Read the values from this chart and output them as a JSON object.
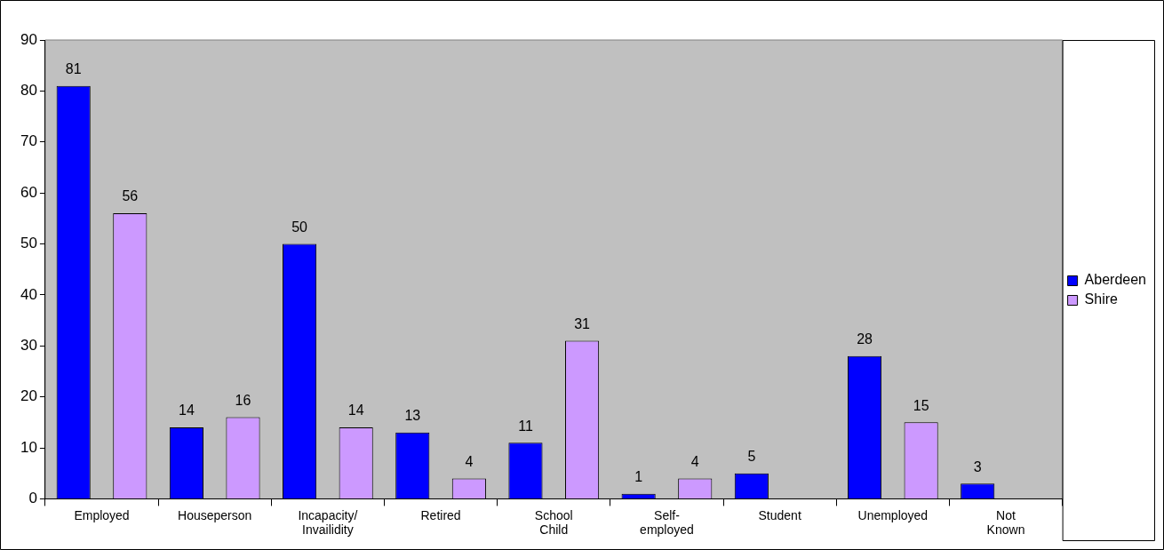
{
  "chart_data": {
    "type": "bar",
    "categories": [
      "Employed",
      "Houseperson",
      "Incapacity/ Invailidity",
      "Retired",
      "School Child",
      "Self- employed",
      "Student",
      "Unemployed",
      "Not Known"
    ],
    "series": [
      {
        "name": "Aberdeen",
        "color": "#0000ff",
        "values": [
          81,
          14,
          50,
          13,
          11,
          1,
          5,
          28,
          3
        ]
      },
      {
        "name": "Shire",
        "color": "#cc99ff",
        "values": [
          56,
          16,
          14,
          4,
          31,
          4,
          null,
          15,
          null
        ]
      }
    ],
    "ylim": [
      0,
      90
    ],
    "yticks": [
      0,
      10,
      20,
      30,
      40,
      50,
      60,
      70,
      80,
      90
    ],
    "grid": false,
    "legend": "right",
    "data_labels": true
  }
}
